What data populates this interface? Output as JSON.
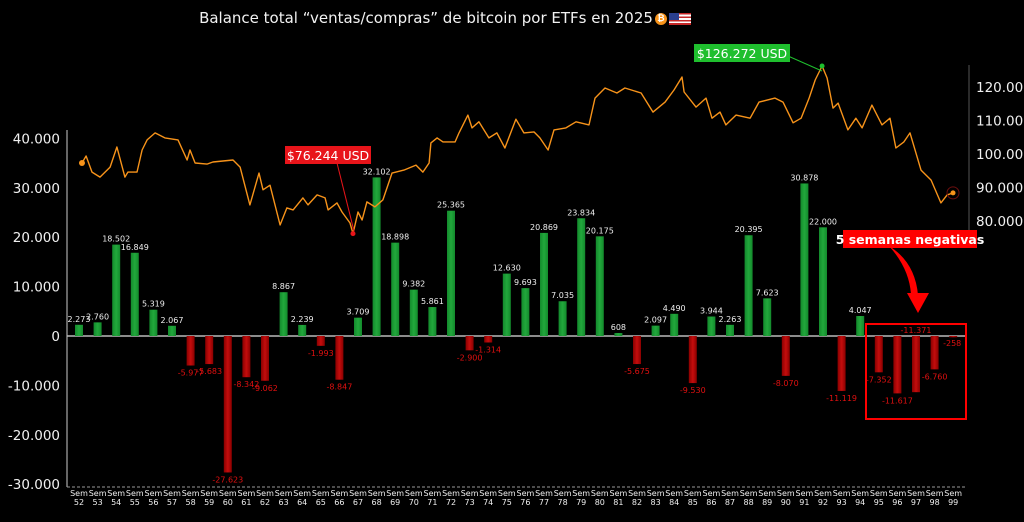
{
  "title": "Balance total “ventas/compras” de bitcoin por ETFs en 2025",
  "title_icons": [
    "bitcoin-icon",
    "us-flag-icon"
  ],
  "colors": {
    "positive": "#22a83c",
    "negative": "#c40d0d",
    "price_line": "#f7931a",
    "min_label": "#e8141a",
    "max_label": "#1fbf2e",
    "annotation": "#ff0000"
  },
  "annotations": {
    "min_price": "$76.244 USD",
    "max_price": "$126.272 USD",
    "negative_weeks": "5 semanas negativas"
  },
  "chart_data": {
    "type": "bar+line",
    "title": "Balance total “ventas/compras” de bitcoin por ETFs en 2025",
    "grid": false,
    "ylim_left": [
      -30000,
      40000
    ],
    "ylim_right": [
      80000,
      125000
    ],
    "y_ticks_left": [
      "40.000",
      "30.000",
      "20.000",
      "10.000",
      "0",
      "-10.000",
      "-20.000",
      "-30.000"
    ],
    "y_ticks_left_values": [
      40000,
      30000,
      20000,
      10000,
      0,
      -10000,
      -20000,
      -30000
    ],
    "y_ticks_right": [
      "120.000",
      "110.000",
      "100.000",
      "90.000",
      "80.000"
    ],
    "y_ticks_right_values": [
      120000,
      110000,
      100000,
      90000,
      80000
    ],
    "categories": [
      "52",
      "53",
      "54",
      "55",
      "56",
      "57",
      "58",
      "59",
      "60",
      "61",
      "62",
      "63",
      "64",
      "65",
      "66",
      "67",
      "68",
      "69",
      "70",
      "71",
      "72",
      "73",
      "74",
      "75",
      "76",
      "77",
      "78",
      "79",
      "80",
      "81",
      "82",
      "83",
      "84",
      "85",
      "86",
      "87",
      "88",
      "89",
      "90",
      "91",
      "92",
      "93",
      "94",
      "95",
      "96",
      "97",
      "98",
      "99"
    ],
    "category_prefix": "Sem",
    "bars": [
      2273,
      2760,
      18502,
      16849,
      5319,
      2067,
      -5977,
      -5683,
      -27623,
      -8342,
      -9062,
      8867,
      2239,
      -1993,
      -8847,
      3709,
      32102,
      18898,
      9382,
      5861,
      25365,
      -2900,
      -1314,
      12630,
      9693,
      20869,
      7035,
      23834,
      20175,
      608,
      -5675,
      2097,
      4490,
      -9530,
      3944,
      2263,
      20395,
      7623,
      -8070,
      30878,
      22000,
      -11119,
      4047,
      -7352,
      -11617,
      -11371,
      -6760,
      -258
    ],
    "price_series": [
      [
        52.16,
        97300
      ],
      [
        52.38,
        99400
      ],
      [
        52.7,
        94600
      ],
      [
        53.13,
        93100
      ],
      [
        53.67,
        96100
      ],
      [
        54.04,
        102100
      ],
      [
        54.47,
        93100
      ],
      [
        54.63,
        94600
      ],
      [
        55.12,
        94600
      ],
      [
        55.39,
        101200
      ],
      [
        55.66,
        104200
      ],
      [
        56.09,
        106300
      ],
      [
        56.62,
        104800
      ],
      [
        57.32,
        104200
      ],
      [
        57.81,
        98200
      ],
      [
        57.97,
        101200
      ],
      [
        58.24,
        97300
      ],
      [
        58.88,
        97000
      ],
      [
        59.2,
        97600
      ],
      [
        60.28,
        98200
      ],
      [
        60.66,
        96100
      ],
      [
        61.19,
        84800
      ],
      [
        61.68,
        94300
      ],
      [
        61.89,
        89300
      ],
      [
        62.27,
        90700
      ],
      [
        62.81,
        78800
      ],
      [
        63.18,
        83900
      ],
      [
        63.51,
        83300
      ],
      [
        64.04,
        86900
      ],
      [
        64.31,
        84800
      ],
      [
        64.8,
        87800
      ],
      [
        65.23,
        86900
      ],
      [
        65.39,
        83300
      ],
      [
        65.87,
        85400
      ],
      [
        66.14,
        82700
      ],
      [
        66.57,
        79400
      ],
      [
        66.73,
        76244
      ],
      [
        67.0,
        82700
      ],
      [
        67.22,
        80300
      ],
      [
        67.48,
        85700
      ],
      [
        67.91,
        84200
      ],
      [
        68.34,
        86300
      ],
      [
        68.83,
        94300
      ],
      [
        69.47,
        95200
      ],
      [
        70.12,
        96700
      ],
      [
        70.49,
        94600
      ],
      [
        70.82,
        97300
      ],
      [
        70.92,
        103300
      ],
      [
        71.25,
        104800
      ],
      [
        71.57,
        103600
      ],
      [
        72.22,
        103600
      ],
      [
        72.43,
        106300
      ],
      [
        72.91,
        111600
      ],
      [
        73.13,
        107800
      ],
      [
        73.5,
        109600
      ],
      [
        74.04,
        104800
      ],
      [
        74.47,
        106300
      ],
      [
        74.9,
        101800
      ],
      [
        75.49,
        110400
      ],
      [
        75.92,
        106300
      ],
      [
        76.46,
        106600
      ],
      [
        76.78,
        104800
      ],
      [
        77.22,
        101200
      ],
      [
        77.54,
        107200
      ],
      [
        78.18,
        107800
      ],
      [
        78.72,
        109600
      ],
      [
        79.42,
        108700
      ],
      [
        79.74,
        116700
      ],
      [
        80.28,
        119700
      ],
      [
        80.92,
        118200
      ],
      [
        81.35,
        119700
      ],
      [
        82.22,
        118200
      ],
      [
        82.86,
        112500
      ],
      [
        83.51,
        115500
      ],
      [
        83.99,
        119100
      ],
      [
        84.42,
        123000
      ],
      [
        84.53,
        118500
      ],
      [
        85.17,
        114000
      ],
      [
        85.71,
        116700
      ],
      [
        86.03,
        110700
      ],
      [
        86.46,
        112500
      ],
      [
        86.78,
        108700
      ],
      [
        87.32,
        111600
      ],
      [
        88.08,
        110700
      ],
      [
        88.56,
        115500
      ],
      [
        89.42,
        116700
      ],
      [
        89.85,
        115500
      ],
      [
        90.39,
        109300
      ],
      [
        90.82,
        110700
      ],
      [
        91.25,
        116700
      ],
      [
        91.58,
        122100
      ],
      [
        91.95,
        126272
      ],
      [
        92.22,
        122700
      ],
      [
        92.54,
        113700
      ],
      [
        92.81,
        115200
      ],
      [
        93.34,
        107200
      ],
      [
        93.77,
        110700
      ],
      [
        94.1,
        107800
      ],
      [
        94.63,
        114600
      ],
      [
        95.17,
        108700
      ],
      [
        95.6,
        110700
      ],
      [
        95.92,
        101800
      ],
      [
        96.35,
        103600
      ],
      [
        96.68,
        106300
      ],
      [
        97.27,
        95200
      ],
      [
        97.81,
        92200
      ],
      [
        98.34,
        85400
      ],
      [
        98.67,
        87800
      ],
      [
        98.99,
        88400
      ]
    ],
    "min_point": {
      "week": 66.73,
      "price": 76244
    },
    "max_point": {
      "week": 91.95,
      "price": 126272
    },
    "highlighted_weeks": [
      "95",
      "96",
      "97",
      "98",
      "99"
    ]
  }
}
